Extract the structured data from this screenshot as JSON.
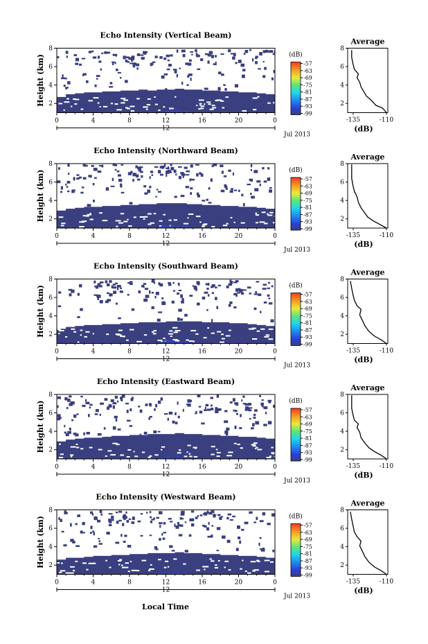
{
  "figure": {
    "xlabel_bottom": "Local Time",
    "date_label": "Jul 2013",
    "day_label": "12",
    "ylabel": "Height (km)",
    "avg_title": "Average",
    "avg_xlabel": "(dB)",
    "cbar_unit": "(dB)"
  },
  "colors": {
    "background_echo": "#3a3f80",
    "enhanced_echo": "#2f46c8",
    "profile_line": "#000000"
  },
  "chart_data": [
    {
      "type": "heatmap",
      "title": "Echo Intensity (Vertical Beam)",
      "xlabel": "Local Time",
      "ylabel": "Height (km)",
      "xlim": [
        0,
        24
      ],
      "ylim": [
        1,
        8
      ],
      "x_ticks": [
        "0",
        "4",
        "8",
        "12",
        "16",
        "20",
        "0"
      ],
      "y_ticks": [
        "2",
        "4",
        "6",
        "8"
      ],
      "colorbar": {
        "unit": "(dB)",
        "labels": [
          "-57",
          "-63",
          "-69",
          "-75",
          "-81",
          "-87",
          "-93",
          "-99"
        ],
        "range": [
          -99,
          -57
        ]
      },
      "low_layer_top_km": [
        2.7,
        3.0,
        3.1,
        3.2,
        3.2,
        3.3,
        3.3,
        3.4,
        3.4,
        3.5,
        3.4,
        3.5,
        3.5,
        3.6,
        3.5,
        3.5,
        3.4,
        3.4,
        3.3,
        3.3,
        3.2,
        3.2,
        3.1,
        3.0
      ],
      "average_profile": {
        "title": "Average",
        "xlabel": "(dB)",
        "x_ticks": [
          "-135",
          "-110"
        ],
        "y_ticks": [
          "2",
          "4",
          "6",
          "8"
        ],
        "xlim": [
          -138,
          -108
        ],
        "ylim": [
          1,
          8
        ],
        "points": [
          [
            -109,
            1.0
          ],
          [
            -112,
            1.5
          ],
          [
            -117,
            1.8
          ],
          [
            -120,
            2.3
          ],
          [
            -124,
            2.8
          ],
          [
            -126,
            3.3
          ],
          [
            -128,
            3.8
          ],
          [
            -129,
            4.3
          ],
          [
            -131,
            4.8
          ],
          [
            -130,
            5.2
          ],
          [
            -133,
            5.7
          ],
          [
            -134,
            6.3
          ],
          [
            -135,
            7.0
          ],
          [
            -135,
            7.8
          ]
        ]
      }
    },
    {
      "type": "heatmap",
      "title": "Echo Intensity (Northward Beam)",
      "xlabel": "Local Time",
      "ylabel": "Height (km)",
      "xlim": [
        0,
        24
      ],
      "ylim": [
        1,
        8
      ],
      "x_ticks": [
        "0",
        "4",
        "8",
        "12",
        "16",
        "20",
        "0"
      ],
      "y_ticks": [
        "2",
        "4",
        "6",
        "8"
      ],
      "colorbar": {
        "unit": "(dB)",
        "labels": [
          "-57",
          "-63",
          "-69",
          "-75",
          "-81",
          "-87",
          "-93",
          "-99"
        ],
        "range": [
          -99,
          -57
        ]
      },
      "low_layer_top_km": [
        2.9,
        3.1,
        3.2,
        3.3,
        3.3,
        3.4,
        3.4,
        3.5,
        3.5,
        3.6,
        3.6,
        3.7,
        3.7,
        3.7,
        3.6,
        3.6,
        3.5,
        3.5,
        3.4,
        3.4,
        3.3,
        3.3,
        3.2,
        3.1
      ],
      "average_profile": {
        "title": "Average",
        "xlabel": "(dB)",
        "x_ticks": [
          "-135",
          "-110"
        ],
        "y_ticks": [
          "2",
          "4",
          "6",
          "8"
        ],
        "xlim": [
          -138,
          -108
        ],
        "ylim": [
          1,
          8
        ],
        "points": [
          [
            -109,
            1.0
          ],
          [
            -114,
            1.4
          ],
          [
            -119,
            1.8
          ],
          [
            -123,
            2.2
          ],
          [
            -125,
            2.6
          ],
          [
            -128,
            3.2
          ],
          [
            -130,
            3.8
          ],
          [
            -131,
            4.4
          ],
          [
            -133,
            5.0
          ],
          [
            -134,
            5.6
          ],
          [
            -135,
            6.4
          ],
          [
            -135,
            7.2
          ],
          [
            -135,
            7.9
          ]
        ]
      }
    },
    {
      "type": "heatmap",
      "title": "Echo Intensity (Southward Beam)",
      "xlabel": "Local Time",
      "ylabel": "Height (km)",
      "xlim": [
        0,
        24
      ],
      "ylim": [
        1,
        8
      ],
      "x_ticks": [
        "0",
        "4",
        "8",
        "12",
        "16",
        "20",
        "0"
      ],
      "y_ticks": [
        "2",
        "4",
        "6",
        "8"
      ],
      "colorbar": {
        "unit": "(dB)",
        "labels": [
          "-57",
          "-63",
          "-69",
          "-75",
          "-81",
          "-87",
          "-93",
          "-99"
        ],
        "range": [
          -99,
          -57
        ]
      },
      "low_layer_top_km": [
        2.6,
        2.8,
        2.9,
        3.0,
        3.0,
        3.1,
        3.1,
        3.2,
        3.2,
        3.3,
        3.3,
        3.3,
        3.4,
        3.4,
        3.4,
        3.4,
        3.3,
        3.3,
        3.3,
        3.2,
        3.2,
        3.1,
        3.0,
        2.9
      ],
      "average_profile": {
        "title": "Average",
        "xlabel": "(dB)",
        "x_ticks": [
          "-135",
          "-110"
        ],
        "y_ticks": [
          "2",
          "4",
          "6",
          "8"
        ],
        "xlim": [
          -138,
          -108
        ],
        "ylim": [
          1,
          8
        ],
        "points": [
          [
            -109,
            1.0
          ],
          [
            -113,
            1.4
          ],
          [
            -118,
            1.8
          ],
          [
            -122,
            2.3
          ],
          [
            -125,
            2.9
          ],
          [
            -127,
            3.5
          ],
          [
            -129,
            4.1
          ],
          [
            -128,
            4.7
          ],
          [
            -131,
            5.1
          ],
          [
            -133,
            5.7
          ],
          [
            -134,
            6.3
          ],
          [
            -135,
            7.0
          ],
          [
            -136,
            7.8
          ]
        ]
      }
    },
    {
      "type": "heatmap",
      "title": "Echo Intensity (Eastward Beam)",
      "xlabel": "Local Time",
      "ylabel": "Height (km)",
      "xlim": [
        0,
        24
      ],
      "ylim": [
        1,
        8
      ],
      "x_ticks": [
        "0",
        "4",
        "8",
        "12",
        "16",
        "20",
        "0"
      ],
      "y_ticks": [
        "2",
        "4",
        "6",
        "8"
      ],
      "colorbar": {
        "unit": "(dB)",
        "labels": [
          "-57",
          "-63",
          "-69",
          "-75",
          "-81",
          "-87",
          "-93",
          "-99"
        ],
        "range": [
          -99,
          -57
        ]
      },
      "low_layer_top_km": [
        2.9,
        3.1,
        3.2,
        3.3,
        3.3,
        3.4,
        3.5,
        3.5,
        3.6,
        3.6,
        3.7,
        3.7,
        3.7,
        3.8,
        3.7,
        3.7,
        3.6,
        3.6,
        3.5,
        3.5,
        3.4,
        3.4,
        3.3,
        3.2
      ],
      "average_profile": {
        "title": "Average",
        "xlabel": "(dB)",
        "x_ticks": [
          "-135",
          "-110"
        ],
        "y_ticks": [
          "2",
          "4",
          "6",
          "8"
        ],
        "xlim": [
          -138,
          -108
        ],
        "ylim": [
          1,
          8
        ],
        "points": [
          [
            -109,
            1.0
          ],
          [
            -113,
            1.4
          ],
          [
            -118,
            1.8
          ],
          [
            -122,
            2.2
          ],
          [
            -125,
            2.7
          ],
          [
            -128,
            3.3
          ],
          [
            -129,
            3.9
          ],
          [
            -131,
            4.4
          ],
          [
            -130,
            4.8
          ],
          [
            -133,
            5.2
          ],
          [
            -134,
            5.8
          ],
          [
            -135,
            6.5
          ],
          [
            -135,
            7.3
          ],
          [
            -135,
            7.9
          ]
        ]
      }
    },
    {
      "type": "heatmap",
      "title": "Echo Intensity (Westward Beam)",
      "xlabel": "Local Time",
      "ylabel": "Height (km)",
      "xlim": [
        0,
        24
      ],
      "ylim": [
        1,
        8
      ],
      "x_ticks": [
        "0",
        "4",
        "8",
        "12",
        "16",
        "20",
        "0"
      ],
      "y_ticks": [
        "2",
        "4",
        "6",
        "8"
      ],
      "colorbar": {
        "unit": "(dB)",
        "labels": [
          "-57",
          "-63",
          "-69",
          "-75",
          "-81",
          "-87",
          "-93",
          "-99"
        ],
        "range": [
          -99,
          -57
        ]
      },
      "low_layer_top_km": [
        2.6,
        2.8,
        2.8,
        2.9,
        3.0,
        3.0,
        3.1,
        3.1,
        3.2,
        3.2,
        3.3,
        3.3,
        3.3,
        3.4,
        3.3,
        3.3,
        3.2,
        3.2,
        3.1,
        3.1,
        3.0,
        3.0,
        2.9,
        2.8
      ],
      "average_profile": {
        "title": "Average",
        "xlabel": "(dB)",
        "x_ticks": [
          "-135",
          "-110"
        ],
        "y_ticks": [
          "2",
          "4",
          "6",
          "8"
        ],
        "xlim": [
          -138,
          -108
        ],
        "ylim": [
          1,
          8
        ],
        "points": [
          [
            -109,
            1.0
          ],
          [
            -113,
            1.4
          ],
          [
            -118,
            1.8
          ],
          [
            -122,
            2.3
          ],
          [
            -125,
            2.9
          ],
          [
            -127,
            3.5
          ],
          [
            -129,
            4.1
          ],
          [
            -128,
            4.6
          ],
          [
            -131,
            5.1
          ],
          [
            -133,
            5.6
          ],
          [
            -134,
            6.3
          ],
          [
            -135,
            7.0
          ],
          [
            -136,
            7.8
          ]
        ]
      }
    }
  ]
}
